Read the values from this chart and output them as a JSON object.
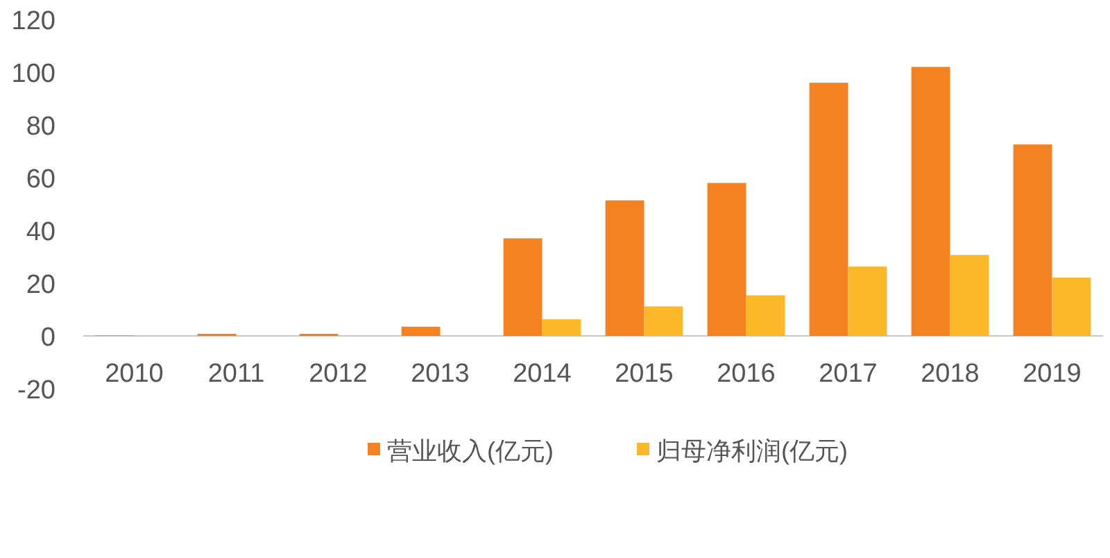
{
  "chart_data": {
    "type": "bar",
    "categories": [
      "2010",
      "2011",
      "2012",
      "2013",
      "2014",
      "2015",
      "2016",
      "2017",
      "2018",
      "2019"
    ],
    "series": [
      {
        "name": "营业收入(亿元)",
        "color": "#f58220",
        "values": [
          0.2,
          0.8,
          0.8,
          3.5,
          37,
          51.4,
          58,
          96,
          102,
          72.6
        ]
      },
      {
        "name": "归母净利润(亿元)",
        "color": "#fbb829",
        "values": [
          0,
          0,
          0,
          0,
          6.3,
          11.2,
          15.4,
          26.3,
          30.7,
          22.1
        ]
      }
    ],
    "ylim": [
      -20,
      120
    ],
    "yticks": [
      -20,
      0,
      20,
      40,
      60,
      80,
      100,
      120
    ],
    "grid": false,
    "legend": "bottom"
  }
}
